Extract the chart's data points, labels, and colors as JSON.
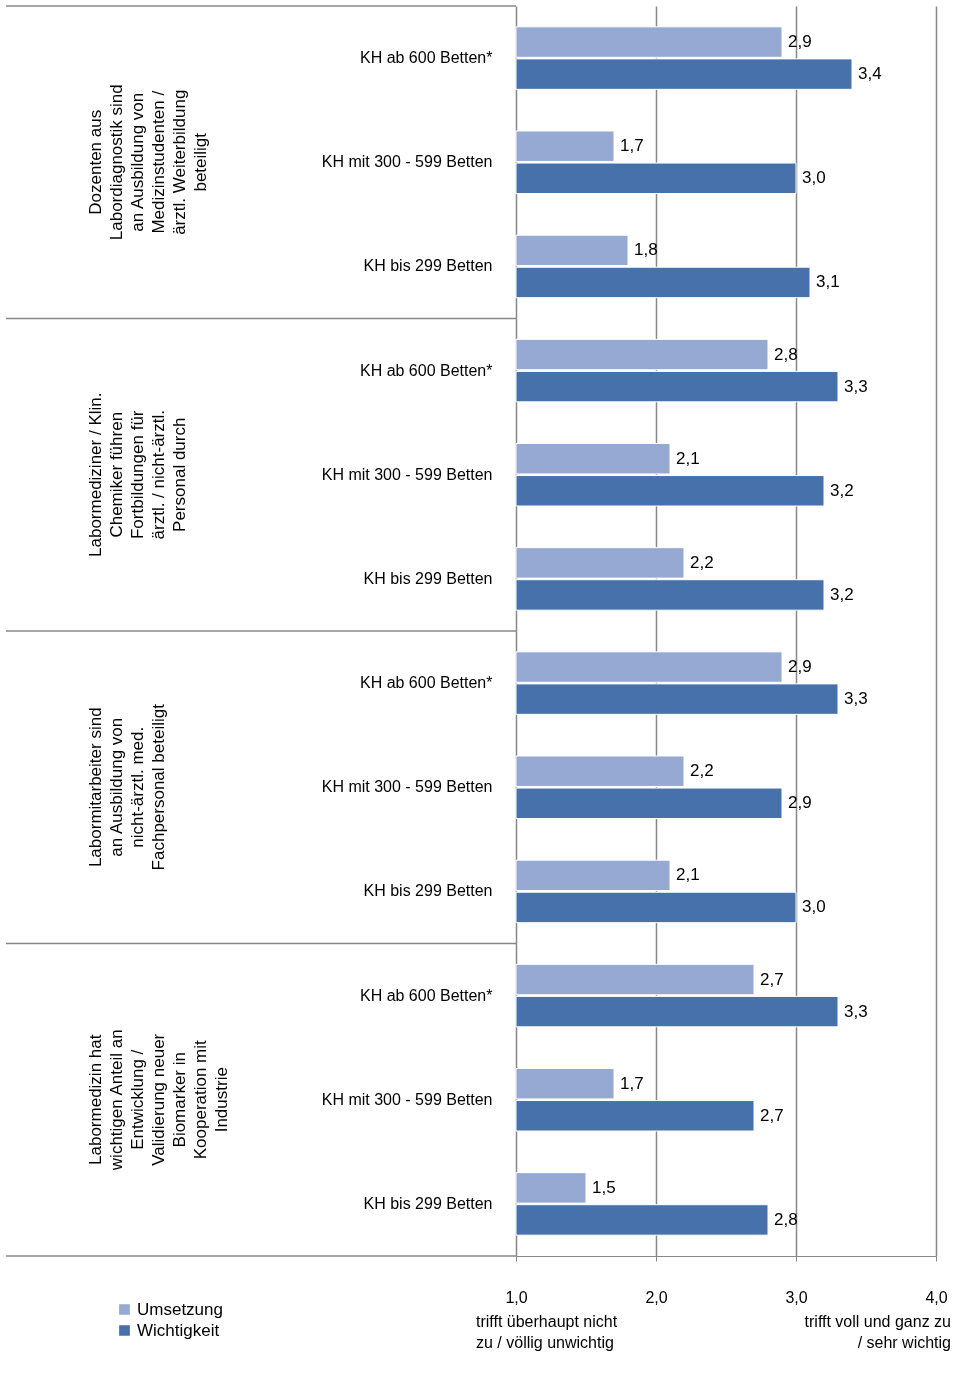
{
  "chart_data": {
    "type": "bar",
    "orientation": "horizontal",
    "categories": [
      "KH ab 600 Betten*",
      "KH mit 300 - 599 Betten",
      "KH bis 299 Betten",
      "KH ab 600 Betten*",
      "KH mit 300 - 599 Betten",
      "KH bis 299 Betten",
      "KH ab 600 Betten*",
      "KH mit 300 - 599 Betten",
      "KH bis 299 Betten",
      "KH ab 600 Betten*",
      "KH mit 300 - 599 Betten",
      "KH bis 299 Betten"
    ],
    "series": [
      {
        "name": "Umsetzung",
        "color": "#95a9d2",
        "values": [
          2.9,
          1.7,
          1.8,
          2.8,
          2.1,
          2.2,
          2.9,
          2.2,
          2.1,
          2.7,
          1.7,
          1.5
        ],
        "value_labels": [
          "2,9",
          "1,7",
          "1,8",
          "2,8",
          "2,1",
          "2,2",
          "2,9",
          "2,2",
          "2,1",
          "2,7",
          "1,7",
          "1,5"
        ]
      },
      {
        "name": "Wichtigkeit",
        "color": "#4671aa",
        "values": [
          3.4,
          3.0,
          3.1,
          3.3,
          3.2,
          3.2,
          3.3,
          2.9,
          3.0,
          3.3,
          2.7,
          2.8
        ],
        "value_labels": [
          "3,4",
          "3,0",
          "3,1",
          "3,3",
          "3,2",
          "3,2",
          "3,3",
          "2,9",
          "3,0",
          "3,3",
          "2,7",
          "2,8"
        ]
      }
    ],
    "xlim": [
      1,
      4
    ],
    "xticks": [
      {
        "value": 1,
        "label": "1,0"
      },
      {
        "value": 2,
        "label": "2,0"
      },
      {
        "value": 3,
        "label": "3,0"
      },
      {
        "value": 4,
        "label": "4,0"
      }
    ],
    "grid": "x",
    "legend": "bottom left",
    "annotations": [
      "Dozenten aus Labordiagnostik sind an Ausbildung von Medizinstudenten / ärztl. Weiterbildung beteiligt",
      "Labormediziner / Klin. Chemiker führen Fortbildungen für ärztl. / nicht-ärztl. Personal durch",
      "Labormitarbeiter sind an Ausbildung von nicht-ärztl. med. Fachpersonal beteiligt",
      "Labormedizin hat wichtigen Anteil an Entwicklung / Validierung neuer Biomarker in Kooperation mit Industrie",
      "trifft überhaupt nicht zu / völlig unwichtig",
      "trifft voll und ganz zu / sehr wichtig"
    ]
  }
}
